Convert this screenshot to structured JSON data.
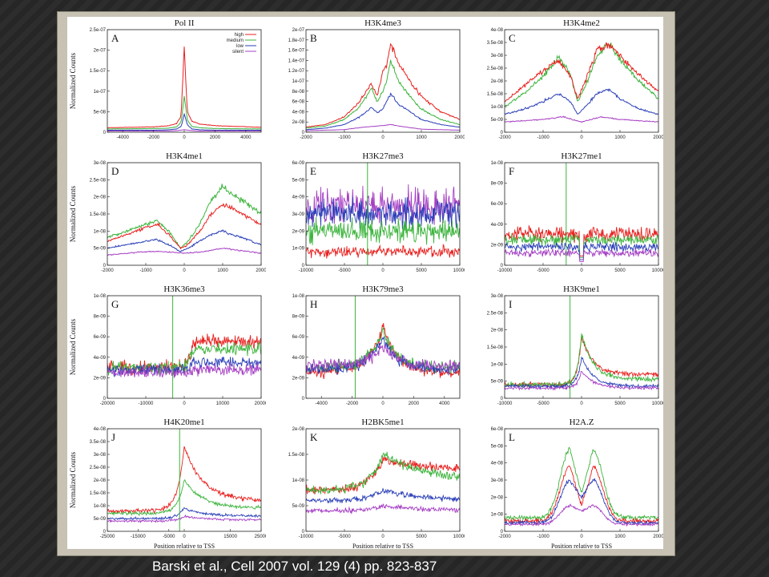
{
  "caption": "Barski et al., Cell 2007 vol. 129 (4) pp. 823-837",
  "colors": {
    "high": "#e8211f",
    "medium": "#3cb43c",
    "low": "#2b3fb8",
    "silent": "#a640c4",
    "background": "#2b2b2b"
  },
  "chart_data": [
    {
      "type": "line",
      "letter": "A",
      "title": "Pol II",
      "ylabel": "Normalized Counts",
      "xlabel": "",
      "xlim": [
        -5000,
        5000
      ],
      "xticks": [
        "-4000",
        "-2000",
        "0",
        "2000",
        "4000"
      ],
      "ylim": [
        0,
        2.5e-07
      ],
      "yticks": [
        "0",
        "5e-08",
        "1e-07",
        "1.5e-07",
        "2e-07",
        "2.5e-07"
      ],
      "legend": [
        "high",
        "medium",
        "low",
        "silent"
      ],
      "legend_position": "top-right",
      "series": [
        {
          "name": "high",
          "x": [
            -5000,
            -2000,
            -1000,
            -500,
            -200,
            0,
            200,
            500,
            1000,
            2000,
            5000
          ],
          "y": [
            1.1e-08,
            1.3e-08,
            1.6e-08,
            2.1e-08,
            4e-08,
            2.1e-07,
            5e-08,
            2.7e-08,
            2e-08,
            1.6e-08,
            1.2e-08
          ]
        },
        {
          "name": "medium",
          "x": [
            -5000,
            -2000,
            -1000,
            -500,
            -200,
            0,
            200,
            500,
            1000,
            2000,
            5000
          ],
          "y": [
            8e-09,
            9e-09,
            1e-08,
            1.3e-08,
            2.5e-08,
            9e-08,
            3e-08,
            1.4e-08,
            1.1e-08,
            9e-09,
            8e-09
          ]
        },
        {
          "name": "low",
          "x": [
            -5000,
            -2000,
            -1000,
            -500,
            -200,
            0,
            200,
            500,
            1000,
            2000,
            5000
          ],
          "y": [
            5e-09,
            5e-09,
            6e-09,
            8e-09,
            1.4e-08,
            4.5e-08,
            1.8e-08,
            8e-09,
            6e-09,
            5e-09,
            5e-09
          ]
        },
        {
          "name": "silent",
          "x": [
            -5000,
            -2000,
            -1000,
            -500,
            0,
            500,
            1000,
            2000,
            5000
          ],
          "y": [
            3e-09,
            3e-09,
            3e-09,
            4e-09,
            6e-09,
            4e-09,
            3e-09,
            3e-09,
            3e-09
          ]
        }
      ]
    },
    {
      "type": "line",
      "letter": "B",
      "title": "H3K4me3",
      "ylabel": "",
      "xlabel": "",
      "xlim": [
        -2000,
        2000
      ],
      "xticks": [
        "-2000",
        "-1000",
        "0",
        "1000",
        "2000"
      ],
      "ylim": [
        0,
        2e-07
      ],
      "yticks": [
        "0",
        "2e-08",
        "4e-08",
        "6e-08",
        "8e-08",
        "1e-07",
        "1.2e-07",
        "1.4e-07",
        "1.6e-07",
        "1.8e-07",
        "2e-07"
      ],
      "series": [
        {
          "name": "high",
          "x": [
            -2000,
            -1500,
            -1000,
            -600,
            -300,
            -150,
            0,
            100,
            200,
            400,
            700,
            1000,
            1500,
            2000
          ],
          "y": [
            1e-08,
            1.5e-08,
            3e-08,
            6e-08,
            9.5e-08,
            7e-08,
            1.2e-07,
            1.3e-07,
            1.75e-07,
            1.35e-07,
            1e-07,
            7e-08,
            4e-08,
            2.5e-08
          ]
        },
        {
          "name": "medium",
          "x": [
            -2000,
            -1500,
            -1000,
            -600,
            -300,
            -150,
            0,
            100,
            200,
            400,
            700,
            1000,
            1500,
            2000
          ],
          "y": [
            8e-09,
            1.2e-08,
            2.5e-08,
            5e-08,
            8.5e-08,
            6e-08,
            8e-08,
            1e-07,
            1.4e-07,
            1e-07,
            7e-08,
            4.5e-08,
            2.5e-08,
            1.5e-08
          ]
        },
        {
          "name": "low",
          "x": [
            -2000,
            -1500,
            -1000,
            -600,
            -300,
            -150,
            0,
            100,
            200,
            400,
            700,
            1000,
            1500,
            2000
          ],
          "y": [
            5e-09,
            8e-09,
            1.5e-08,
            3e-08,
            4.8e-08,
            3.8e-08,
            4.5e-08,
            6e-08,
            7.5e-08,
            5.5e-08,
            4e-08,
            2.5e-08,
            1.5e-08,
            1e-08
          ]
        },
        {
          "name": "silent",
          "x": [
            -2000,
            -1000,
            -500,
            0,
            200,
            500,
            1000,
            2000
          ],
          "y": [
            3e-09,
            5e-09,
            1e-08,
            1.3e-08,
            1.5e-08,
            1.1e-08,
            6e-09,
            4e-09
          ]
        }
      ]
    },
    {
      "type": "line",
      "letter": "C",
      "title": "H3K4me2",
      "ylabel": "",
      "xlabel": "",
      "xlim": [
        -2000,
        2000
      ],
      "xticks": [
        "-2000",
        "-1000",
        "0",
        "1000",
        "2000"
      ],
      "ylim": [
        0,
        4e-08
      ],
      "yticks": [
        "0",
        "5e-09",
        "1e-08",
        "1.5e-08",
        "2e-08",
        "2.5e-08",
        "3e-08",
        "3.5e-08",
        "4e-08"
      ],
      "series": [
        {
          "name": "high",
          "x": [
            -2000,
            -1500,
            -1000,
            -600,
            -300,
            -100,
            100,
            400,
            700,
            1000,
            1500,
            2000
          ],
          "y": [
            1.2e-08,
            1.8e-08,
            2.4e-08,
            2.8e-08,
            2.2e-08,
            1.3e-08,
            2e-08,
            3.2e-08,
            3.4e-08,
            3e-08,
            2.2e-08,
            1.6e-08
          ]
        },
        {
          "name": "medium",
          "x": [
            -2000,
            -1500,
            -1000,
            -600,
            -300,
            -100,
            100,
            400,
            700,
            1000,
            1500,
            2000
          ],
          "y": [
            1e-08,
            1.5e-08,
            2.2e-08,
            2.9e-08,
            2.3e-08,
            1.2e-08,
            1.8e-08,
            3e-08,
            3.5e-08,
            2.8e-08,
            2e-08,
            1.3e-08
          ]
        },
        {
          "name": "low",
          "x": [
            -2000,
            -1500,
            -1000,
            -600,
            -300,
            -100,
            100,
            400,
            700,
            1000,
            1500,
            2000
          ],
          "y": [
            7e-09,
            9e-09,
            1.2e-08,
            1.5e-08,
            1.2e-08,
            7e-09,
            1e-08,
            1.5e-08,
            1.7e-08,
            1.3e-08,
            9e-09,
            7e-09
          ]
        },
        {
          "name": "silent",
          "x": [
            -2000,
            -1000,
            -500,
            0,
            500,
            1000,
            2000
          ],
          "y": [
            4e-09,
            5e-09,
            6e-09,
            4e-09,
            6e-09,
            5e-09,
            4e-09
          ]
        }
      ]
    },
    {
      "type": "line",
      "letter": "D",
      "title": "H3K4me1",
      "ylabel": "Normalized Counts",
      "xlabel": "",
      "xlim": [
        -2000,
        2000
      ],
      "xticks": [
        "-2000",
        "-1000",
        "0",
        "1000",
        "2000"
      ],
      "ylim": [
        0,
        3e-08
      ],
      "yticks": [
        "0",
        "5e-09",
        "1e-08",
        "1.5e-08",
        "2e-08",
        "2.5e-08",
        "3e-08"
      ],
      "series": [
        {
          "name": "high",
          "x": [
            -2000,
            -1500,
            -1000,
            -700,
            -400,
            -100,
            100,
            400,
            700,
            1000,
            1500,
            2000
          ],
          "y": [
            7e-09,
            9e-09,
            1.1e-08,
            1.2e-08,
            9e-09,
            5e-09,
            6e-09,
            1e-08,
            1.5e-08,
            1.8e-08,
            1.5e-08,
            1.2e-08
          ]
        },
        {
          "name": "medium",
          "x": [
            -2000,
            -1500,
            -1000,
            -700,
            -400,
            -100,
            100,
            400,
            700,
            1000,
            1500,
            2000
          ],
          "y": [
            8e-09,
            1e-08,
            1.2e-08,
            1.3e-08,
            1e-08,
            5e-09,
            7e-09,
            1.2e-08,
            1.9e-08,
            2.3e-08,
            1.9e-08,
            1.5e-08
          ]
        },
        {
          "name": "low",
          "x": [
            -2000,
            -1500,
            -1000,
            -700,
            -400,
            -100,
            100,
            400,
            700,
            1000,
            1500,
            2000
          ],
          "y": [
            5e-09,
            6e-09,
            7e-09,
            7.5e-09,
            6e-09,
            4e-09,
            5e-09,
            7e-09,
            9e-09,
            1e-08,
            8e-09,
            6e-09
          ]
        },
        {
          "name": "silent",
          "x": [
            -2000,
            -1000,
            -500,
            0,
            500,
            1000,
            2000
          ],
          "y": [
            3e-09,
            4e-09,
            4e-09,
            3.5e-09,
            4e-09,
            5e-09,
            3.5e-09
          ]
        }
      ]
    },
    {
      "type": "line",
      "letter": "E",
      "title": "H3K27me3",
      "ylabel": "",
      "xlabel": "",
      "xlim": [
        -10000,
        10000
      ],
      "xticks": [
        "-10000",
        "-5000",
        "0",
        "5000",
        "10000"
      ],
      "ylim": [
        0,
        6e-09
      ],
      "yticks": [
        "0",
        "1e-09",
        "2e-09",
        "3e-09",
        "4e-09",
        "5e-09",
        "6e-09"
      ],
      "series": [
        {
          "name": "silent",
          "mean": 3.5e-09,
          "noise": 1.5e-09
        },
        {
          "name": "low",
          "mean": 3e-09,
          "noise": 1.2e-09
        },
        {
          "name": "medium",
          "mean": 2e-09,
          "noise": 1e-09
        },
        {
          "name": "high",
          "mean": 8e-10,
          "noise": 5e-10
        }
      ]
    },
    {
      "type": "line",
      "letter": "F",
      "title": "H3K27me1",
      "ylabel": "",
      "xlabel": "",
      "xlim": [
        -10000,
        10000
      ],
      "xticks": [
        "-10000",
        "-5000",
        "0",
        "5000",
        "10000"
      ],
      "ylim": [
        0,
        1e-08
      ],
      "yticks": [
        "0",
        "2e-09",
        "4e-09",
        "6e-09",
        "8e-09",
        "1e-08"
      ],
      "series": [
        {
          "name": "high",
          "mean": 3e-09,
          "noise": 1e-09
        },
        {
          "name": "medium",
          "mean": 2.5e-09,
          "noise": 8e-10
        },
        {
          "name": "low",
          "mean": 1.8e-09,
          "noise": 6e-10
        },
        {
          "name": "silent",
          "mean": 1.2e-09,
          "noise": 5e-10
        }
      ]
    },
    {
      "type": "line",
      "letter": "G",
      "title": "H3K36me3",
      "ylabel": "Normalized Counts",
      "xlabel": "",
      "xlim": [
        -20000,
        20000
      ],
      "xticks": [
        "-20000",
        "-10000",
        "0",
        "10000",
        "20000"
      ],
      "ylim": [
        0,
        1e-08
      ],
      "yticks": [
        "0",
        "2e-09",
        "4e-09",
        "6e-09",
        "8e-09",
        "1e-08"
      ],
      "series": [
        {
          "name": "high",
          "mean_before": 3e-09,
          "mean_after": 5.5e-09,
          "noise": 1e-09
        },
        {
          "name": "medium",
          "mean_before": 3e-09,
          "mean_after": 4.8e-09,
          "noise": 9e-10
        },
        {
          "name": "low",
          "mean_before": 2.8e-09,
          "mean_after": 3.5e-09,
          "noise": 8e-10
        },
        {
          "name": "silent",
          "mean_before": 2.5e-09,
          "mean_after": 2.8e-09,
          "noise": 8e-10
        }
      ]
    },
    {
      "type": "line",
      "letter": "H",
      "title": "H3K79me3",
      "ylabel": "",
      "xlabel": "",
      "xlim": [
        -5000,
        5000
      ],
      "xticks": [
        "-4000",
        "-2000",
        "0",
        "2000",
        "4000"
      ],
      "ylim": [
        0,
        1e-08
      ],
      "yticks": [
        "0",
        "2e-09",
        "4e-09",
        "6e-09",
        "8e-09",
        "1e-08"
      ],
      "series": [
        {
          "name": "high",
          "base": 2.5e-09,
          "peak": 7e-09,
          "noise": 8e-10
        },
        {
          "name": "medium",
          "base": 3e-09,
          "peak": 6.5e-09,
          "noise": 8e-10
        },
        {
          "name": "low",
          "base": 2.8e-09,
          "peak": 6e-09,
          "noise": 8e-10
        },
        {
          "name": "silent",
          "base": 3.2e-09,
          "peak": 5e-09,
          "noise": 9e-10
        }
      ]
    },
    {
      "type": "line",
      "letter": "I",
      "title": "H3K9me1",
      "ylabel": "",
      "xlabel": "",
      "xlim": [
        -10000,
        10000
      ],
      "xticks": [
        "-10000",
        "-5000",
        "0",
        "5000",
        "10000"
      ],
      "ylim": [
        0,
        3e-08
      ],
      "yticks": [
        "0",
        "5e-09",
        "1e-08",
        "1.5e-08",
        "2e-08",
        "2.5e-08",
        "3e-08"
      ],
      "series": [
        {
          "name": "high",
          "base": 4e-09,
          "peak": 1.8e-08,
          "tail": 7e-09,
          "noise": 1e-09
        },
        {
          "name": "medium",
          "base": 4e-09,
          "peak": 1.9e-08,
          "tail": 5.5e-09,
          "noise": 1e-09
        },
        {
          "name": "low",
          "base": 3.5e-09,
          "peak": 1.2e-08,
          "tail": 3.5e-09,
          "noise": 8e-10
        },
        {
          "name": "silent",
          "base": 3e-09,
          "peak": 8e-09,
          "tail": 3e-09,
          "noise": 7e-10
        }
      ]
    },
    {
      "type": "line",
      "letter": "J",
      "title": "H4K20me1",
      "ylabel": "Normalized Counts",
      "xlabel": "Position relative to TSS",
      "xlim": [
        -25000,
        25000
      ],
      "xticks": [
        "-25000",
        "-15000",
        "-5000",
        "0",
        "15000",
        "25000"
      ],
      "ylim": [
        0,
        4e-08
      ],
      "yticks": [
        "0",
        "5e-09",
        "1e-08",
        "1.5e-08",
        "2e-08",
        "2.5e-08",
        "3e-08",
        "3.5e-08",
        "4e-08"
      ],
      "series": [
        {
          "name": "high",
          "base": 8e-09,
          "peak": 3.3e-08,
          "tail": 1.2e-08,
          "noise": 1.2e-09
        },
        {
          "name": "medium",
          "base": 7e-09,
          "peak": 2e-08,
          "tail": 9e-09,
          "noise": 1e-09
        },
        {
          "name": "low",
          "base": 5e-09,
          "peak": 9e-09,
          "tail": 6e-09,
          "noise": 7e-10
        },
        {
          "name": "silent",
          "base": 4e-09,
          "peak": 6e-09,
          "tail": 4.5e-09,
          "noise": 6e-10
        }
      ]
    },
    {
      "type": "line",
      "letter": "K",
      "title": "H2BK5me1",
      "ylabel": "",
      "xlabel": "Position relative to TSS",
      "xlim": [
        -10000,
        10000
      ],
      "xticks": [
        "-10000",
        "-5000",
        "0",
        "5000",
        "10000"
      ],
      "ylim": [
        0,
        2e-08
      ],
      "yticks": [
        "0",
        "5e-09",
        "1e-08",
        "1.5e-08",
        "2e-08"
      ],
      "series": [
        {
          "name": "high",
          "base": 8e-09,
          "peak": 1.4e-08,
          "tail": 1.2e-08,
          "noise": 1.2e-09
        },
        {
          "name": "medium",
          "base": 8e-09,
          "peak": 1.5e-08,
          "tail": 1e-08,
          "noise": 1.2e-09
        },
        {
          "name": "low",
          "base": 6e-09,
          "peak": 8e-09,
          "tail": 6e-09,
          "noise": 8e-10
        },
        {
          "name": "silent",
          "base": 4e-09,
          "peak": 5e-09,
          "tail": 4e-09,
          "noise": 7e-10
        }
      ]
    },
    {
      "type": "line",
      "letter": "L",
      "title": "H2A.Z",
      "ylabel": "",
      "xlabel": "Position relative to TSS",
      "xlim": [
        -2000,
        2000
      ],
      "xticks": [
        "-2000",
        "-1000",
        "0",
        "1000",
        "2000"
      ],
      "ylim": [
        0,
        6e-08
      ],
      "yticks": [
        "0",
        "1e-08",
        "2e-08",
        "3e-08",
        "4e-08",
        "5e-08",
        "6e-08"
      ],
      "series": [
        {
          "name": "medium",
          "peak": 4.8e-08,
          "dip": 2.2e-08,
          "edge": 8e-09,
          "noise": 2e-09
        },
        {
          "name": "high",
          "peak": 3.8e-08,
          "dip": 1.5e-08,
          "edge": 6e-09,
          "noise": 2e-09
        },
        {
          "name": "low",
          "peak": 3e-08,
          "dip": 2e-08,
          "edge": 5e-09,
          "noise": 1.5e-09
        },
        {
          "name": "silent",
          "peak": 1.5e-08,
          "dip": 1.2e-08,
          "edge": 4e-09,
          "noise": 1e-09
        }
      ]
    }
  ]
}
